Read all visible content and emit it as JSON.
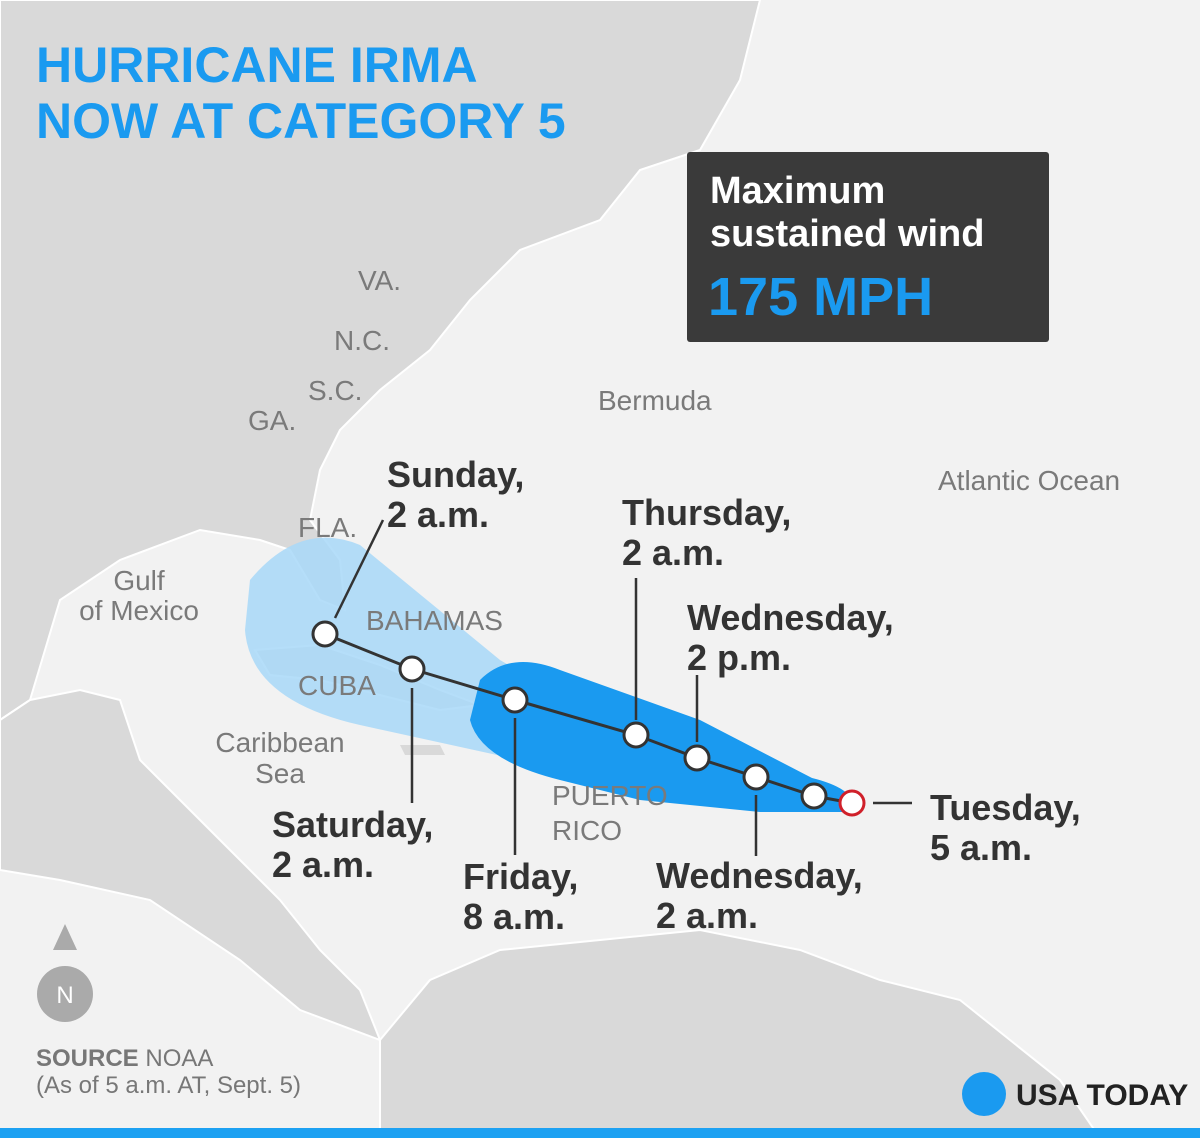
{
  "header": {
    "title": [
      "HURRICANE IRMA",
      "NOW AT CATEGORY 5"
    ]
  },
  "wind_box": {
    "label": [
      "Maximum",
      "sustained wind"
    ],
    "value": "175 MPH"
  },
  "places": {
    "va": "VA.",
    "nc": "N.C.",
    "sc": "S.C.",
    "ga": "GA.",
    "fla": "FLA.",
    "bermuda": "Bermuda",
    "atlantic": "Atlantic Ocean",
    "gulf": [
      "Gulf",
      "of Mexico"
    ],
    "bahamas": "BAHAMAS",
    "cuba": "CUBA",
    "caribbean": [
      "Caribbean",
      "Sea"
    ],
    "puerto_rico": [
      "PUERTO",
      "RICO"
    ]
  },
  "track": [
    {
      "day": "Tuesday,",
      "time": "5 a.m."
    },
    {
      "day": "Wednesday,",
      "time": "2 a.m."
    },
    {
      "day": "Wednesday,",
      "time": "2 p.m."
    },
    {
      "day": "Thursday,",
      "time": "2 a.m."
    },
    {
      "day": "Friday,",
      "time": "8 a.m."
    },
    {
      "day": "Saturday,",
      "time": "2 a.m."
    },
    {
      "day": "Sunday,",
      "time": "2 a.m."
    }
  ],
  "compass": "N",
  "source": {
    "label": "SOURCE",
    "name": "NOAA",
    "note": "(As of 5 a.m. AT, Sept. 5)"
  },
  "brand": "USA TODAY"
}
